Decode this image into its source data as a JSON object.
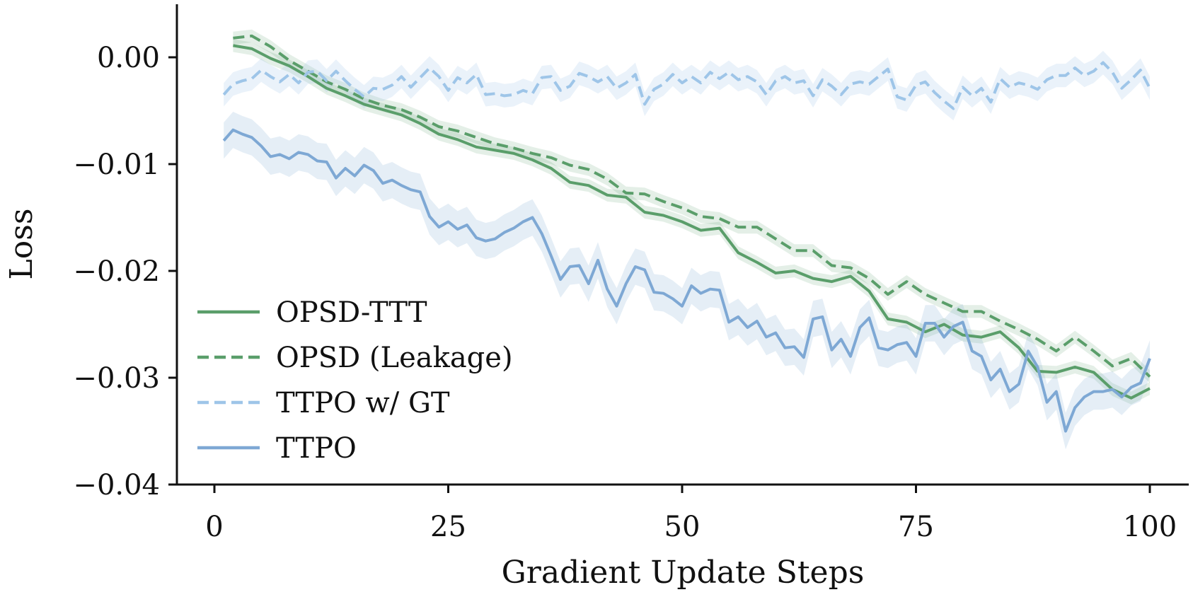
{
  "chart_data": {
    "type": "line",
    "title": "",
    "xlabel": "Gradient Update Steps",
    "ylabel": "Loss",
    "xlim": [
      -3.8,
      104
    ],
    "ylim": [
      -0.04,
      0.005
    ],
    "xticks": [
      0,
      25,
      50,
      75,
      100
    ],
    "xtick_labels": [
      "0",
      "25",
      "50",
      "75",
      "100"
    ],
    "yticks": [
      0.0,
      -0.01,
      -0.02,
      -0.03,
      -0.04
    ],
    "ytick_labels": [
      "0.00",
      "−0.01",
      "−0.02",
      "−0.03",
      "−0.04"
    ],
    "grid": false,
    "legend_position": "lower-left",
    "series": [
      {
        "name": "OPSD-TTT",
        "color": "#5a9e6a",
        "dash": "solid",
        "band": 0.0006,
        "x": [
          2,
          4,
          6,
          8,
          10,
          12,
          14,
          16,
          18,
          20,
          22,
          24,
          26,
          28,
          30,
          32,
          34,
          36,
          38,
          40,
          42,
          44,
          46,
          48,
          50,
          52,
          54,
          56,
          58,
          60,
          62,
          64,
          66,
          68,
          70,
          72,
          74,
          76,
          78,
          80,
          82,
          84,
          86,
          88,
          90,
          92,
          94,
          96,
          98,
          100
        ],
        "y": [
          0.0011,
          0.0008,
          -0.0001,
          -0.0008,
          -0.0018,
          -0.0029,
          -0.0036,
          -0.0044,
          -0.0049,
          -0.0054,
          -0.0062,
          -0.0072,
          -0.0077,
          -0.0084,
          -0.0087,
          -0.009,
          -0.0096,
          -0.0104,
          -0.0117,
          -0.012,
          -0.0129,
          -0.0131,
          -0.0145,
          -0.0148,
          -0.0154,
          -0.0162,
          -0.016,
          -0.0183,
          -0.0192,
          -0.0202,
          -0.02,
          -0.0207,
          -0.021,
          -0.0205,
          -0.0219,
          -0.0245,
          -0.0248,
          -0.0257,
          -0.025,
          -0.026,
          -0.0262,
          -0.0257,
          -0.0272,
          -0.0294,
          -0.0295,
          -0.029,
          -0.0295,
          -0.0311,
          -0.0319,
          -0.031
        ]
      },
      {
        "name": "OPSD (Leakage)",
        "color": "#5a9e6a",
        "dash": "dashed",
        "band": 0.0006,
        "x": [
          2,
          4,
          6,
          8,
          10,
          12,
          14,
          16,
          18,
          20,
          22,
          24,
          26,
          28,
          30,
          32,
          34,
          36,
          38,
          40,
          42,
          44,
          46,
          48,
          50,
          52,
          54,
          56,
          58,
          60,
          62,
          64,
          66,
          68,
          70,
          72,
          74,
          76,
          78,
          80,
          82,
          84,
          86,
          88,
          90,
          92,
          94,
          96,
          98,
          100
        ],
        "y": [
          0.0018,
          0.002,
          0.001,
          -0.0003,
          -0.0013,
          -0.0023,
          -0.003,
          -0.0039,
          -0.0045,
          -0.0049,
          -0.0056,
          -0.0065,
          -0.0069,
          -0.0075,
          -0.0081,
          -0.0085,
          -0.009,
          -0.0094,
          -0.0101,
          -0.0105,
          -0.0114,
          -0.0127,
          -0.0128,
          -0.0135,
          -0.0141,
          -0.0149,
          -0.0151,
          -0.0159,
          -0.0159,
          -0.017,
          -0.0181,
          -0.0181,
          -0.0195,
          -0.0197,
          -0.0207,
          -0.0222,
          -0.021,
          -0.0222,
          -0.023,
          -0.0238,
          -0.0238,
          -0.0247,
          -0.0255,
          -0.0264,
          -0.0275,
          -0.0262,
          -0.0275,
          -0.0289,
          -0.0282,
          -0.0299
        ]
      },
      {
        "name": "TTPO w/ GT",
        "color": "#9ec5e8",
        "dash": "dashed",
        "band": 0.0011,
        "x": [
          1,
          2,
          3,
          4,
          5,
          6,
          7,
          8,
          9,
          10,
          11,
          12,
          13,
          14,
          15,
          16,
          17,
          18,
          19,
          20,
          21,
          22,
          23,
          24,
          25,
          26,
          27,
          28,
          29,
          30,
          31,
          32,
          33,
          34,
          35,
          36,
          37,
          38,
          39,
          40,
          41,
          42,
          43,
          44,
          45,
          46,
          47,
          48,
          49,
          50,
          51,
          52,
          53,
          54,
          55,
          56,
          57,
          58,
          59,
          60,
          61,
          62,
          63,
          64,
          65,
          66,
          67,
          68,
          69,
          70,
          71,
          72,
          73,
          74,
          75,
          76,
          77,
          78,
          79,
          80,
          81,
          82,
          83,
          84,
          85,
          86,
          87,
          88,
          89,
          90,
          91,
          92,
          93,
          94,
          95,
          96,
          97,
          98,
          99,
          100
        ],
        "y": [
          -0.0035,
          -0.0025,
          -0.0022,
          -0.002,
          -0.0012,
          -0.0018,
          -0.0023,
          -0.0016,
          -0.0024,
          -0.0014,
          -0.0013,
          -0.0022,
          -0.0013,
          -0.0022,
          -0.003,
          -0.0037,
          -0.0029,
          -0.003,
          -0.0026,
          -0.0018,
          -0.0028,
          -0.0019,
          -0.001,
          -0.0018,
          -0.0031,
          -0.0019,
          -0.0024,
          -0.0016,
          -0.0035,
          -0.0034,
          -0.0036,
          -0.0035,
          -0.0031,
          -0.0034,
          -0.0019,
          -0.0018,
          -0.0031,
          -0.0027,
          -0.0015,
          -0.0018,
          -0.0023,
          -0.0018,
          -0.0029,
          -0.0024,
          -0.0016,
          -0.0044,
          -0.003,
          -0.0025,
          -0.0016,
          -0.0024,
          -0.0018,
          -0.0024,
          -0.0014,
          -0.002,
          -0.0014,
          -0.0021,
          -0.0018,
          -0.0023,
          -0.0035,
          -0.0022,
          -0.0018,
          -0.0024,
          -0.0022,
          -0.0036,
          -0.0021,
          -0.0027,
          -0.0035,
          -0.0025,
          -0.0023,
          -0.0025,
          -0.0018,
          -0.0011,
          -0.0037,
          -0.004,
          -0.0026,
          -0.0023,
          -0.0033,
          -0.0041,
          -0.0048,
          -0.0028,
          -0.0036,
          -0.0029,
          -0.0042,
          -0.002,
          -0.0028,
          -0.0024,
          -0.0026,
          -0.003,
          -0.0021,
          -0.0017,
          -0.0017,
          -0.001,
          -0.0017,
          -0.0013,
          -0.0005,
          -0.0014,
          -0.0029,
          -0.0021,
          -0.0012,
          -0.0029
        ]
      },
      {
        "name": "TTPO",
        "color": "#7ea8d4",
        "dash": "solid",
        "band": 0.0017,
        "x": [
          1,
          2,
          3,
          4,
          5,
          6,
          7,
          8,
          9,
          10,
          11,
          12,
          13,
          14,
          15,
          16,
          17,
          18,
          19,
          20,
          21,
          22,
          23,
          24,
          25,
          26,
          27,
          28,
          29,
          30,
          31,
          32,
          33,
          34,
          35,
          36,
          37,
          38,
          39,
          40,
          41,
          42,
          43,
          44,
          45,
          46,
          47,
          48,
          49,
          50,
          51,
          52,
          53,
          54,
          55,
          56,
          57,
          58,
          59,
          60,
          61,
          62,
          63,
          64,
          65,
          66,
          67,
          68,
          69,
          70,
          71,
          72,
          73,
          74,
          75,
          76,
          77,
          78,
          79,
          80,
          81,
          82,
          83,
          84,
          85,
          86,
          87,
          88,
          89,
          90,
          91,
          92,
          93,
          94,
          95,
          96,
          97,
          98,
          99,
          100
        ],
        "y": [
          -0.0078,
          -0.0068,
          -0.0072,
          -0.0075,
          -0.0083,
          -0.0093,
          -0.0091,
          -0.0095,
          -0.0089,
          -0.0091,
          -0.0097,
          -0.0098,
          -0.0113,
          -0.0104,
          -0.0111,
          -0.0101,
          -0.0106,
          -0.0118,
          -0.0115,
          -0.012,
          -0.0124,
          -0.0126,
          -0.0149,
          -0.0159,
          -0.0154,
          -0.0161,
          -0.0157,
          -0.0169,
          -0.0172,
          -0.017,
          -0.0164,
          -0.016,
          -0.0154,
          -0.015,
          -0.0165,
          -0.0186,
          -0.0208,
          -0.0196,
          -0.0195,
          -0.0212,
          -0.019,
          -0.0217,
          -0.0233,
          -0.0212,
          -0.0196,
          -0.0199,
          -0.022,
          -0.0221,
          -0.0226,
          -0.0233,
          -0.0214,
          -0.0221,
          -0.0217,
          -0.0218,
          -0.0248,
          -0.0243,
          -0.0253,
          -0.0247,
          -0.0262,
          -0.0258,
          -0.0272,
          -0.0271,
          -0.0281,
          -0.0245,
          -0.0243,
          -0.0274,
          -0.0264,
          -0.028,
          -0.0253,
          -0.0244,
          -0.0272,
          -0.0274,
          -0.0269,
          -0.0267,
          -0.028,
          -0.0249,
          -0.0249,
          -0.0262,
          -0.0252,
          -0.0248,
          -0.0275,
          -0.028,
          -0.0302,
          -0.0292,
          -0.0313,
          -0.0306,
          -0.0275,
          -0.029,
          -0.0323,
          -0.0313,
          -0.035,
          -0.0328,
          -0.0318,
          -0.0313,
          -0.0313,
          -0.0311,
          -0.0318,
          -0.0309,
          -0.0305,
          -0.0282
        ]
      }
    ]
  }
}
